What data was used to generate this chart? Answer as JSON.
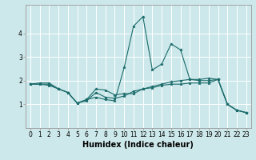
{
  "title": "",
  "xlabel": "Humidex (Indice chaleur)",
  "ylabel": "",
  "background_color": "#cde8ea",
  "grid_color": "#ffffff",
  "line_color": "#1a6b6b",
  "x_values": [
    0,
    1,
    2,
    3,
    4,
    5,
    6,
    7,
    8,
    9,
    10,
    11,
    12,
    13,
    14,
    15,
    16,
    17,
    18,
    19,
    20,
    21,
    22,
    23
  ],
  "series": [
    [
      1.85,
      1.9,
      1.9,
      1.65,
      1.5,
      1.05,
      1.2,
      1.3,
      1.2,
      1.15,
      2.55,
      4.3,
      4.7,
      2.45,
      2.7,
      3.55,
      3.3,
      2.05,
      2.0,
      2.0,
      2.05,
      1.0,
      0.75,
      0.65
    ],
    [
      1.85,
      1.85,
      1.85,
      1.65,
      1.5,
      1.05,
      1.2,
      1.65,
      1.6,
      1.4,
      1.45,
      1.45,
      1.65,
      1.7,
      1.8,
      1.85,
      1.85,
      1.9,
      1.9,
      1.9,
      2.05,
      1.0,
      0.75,
      0.65
    ],
    [
      1.85,
      1.85,
      1.8,
      1.65,
      1.5,
      1.05,
      1.15,
      1.5,
      1.3,
      1.25,
      1.35,
      1.55,
      1.65,
      1.75,
      1.85,
      1.95,
      2.0,
      2.05,
      2.05,
      2.1,
      2.05,
      1.0,
      0.75,
      0.65
    ]
  ],
  "ylim": [
    0.0,
    5.2
  ],
  "xlim": [
    -0.5,
    23.5
  ],
  "yticks": [
    1,
    2,
    3,
    4
  ],
  "ytick_labels": [
    "1",
    "2",
    "3",
    "4"
  ],
  "xticks": [
    0,
    1,
    2,
    3,
    4,
    5,
    6,
    7,
    8,
    9,
    10,
    11,
    12,
    13,
    14,
    15,
    16,
    17,
    18,
    19,
    20,
    21,
    22,
    23
  ],
  "tick_fontsize": 5.5,
  "xlabel_fontsize": 7.0,
  "marker": "*",
  "marker_size": 2.5,
  "linewidth": 0.8
}
